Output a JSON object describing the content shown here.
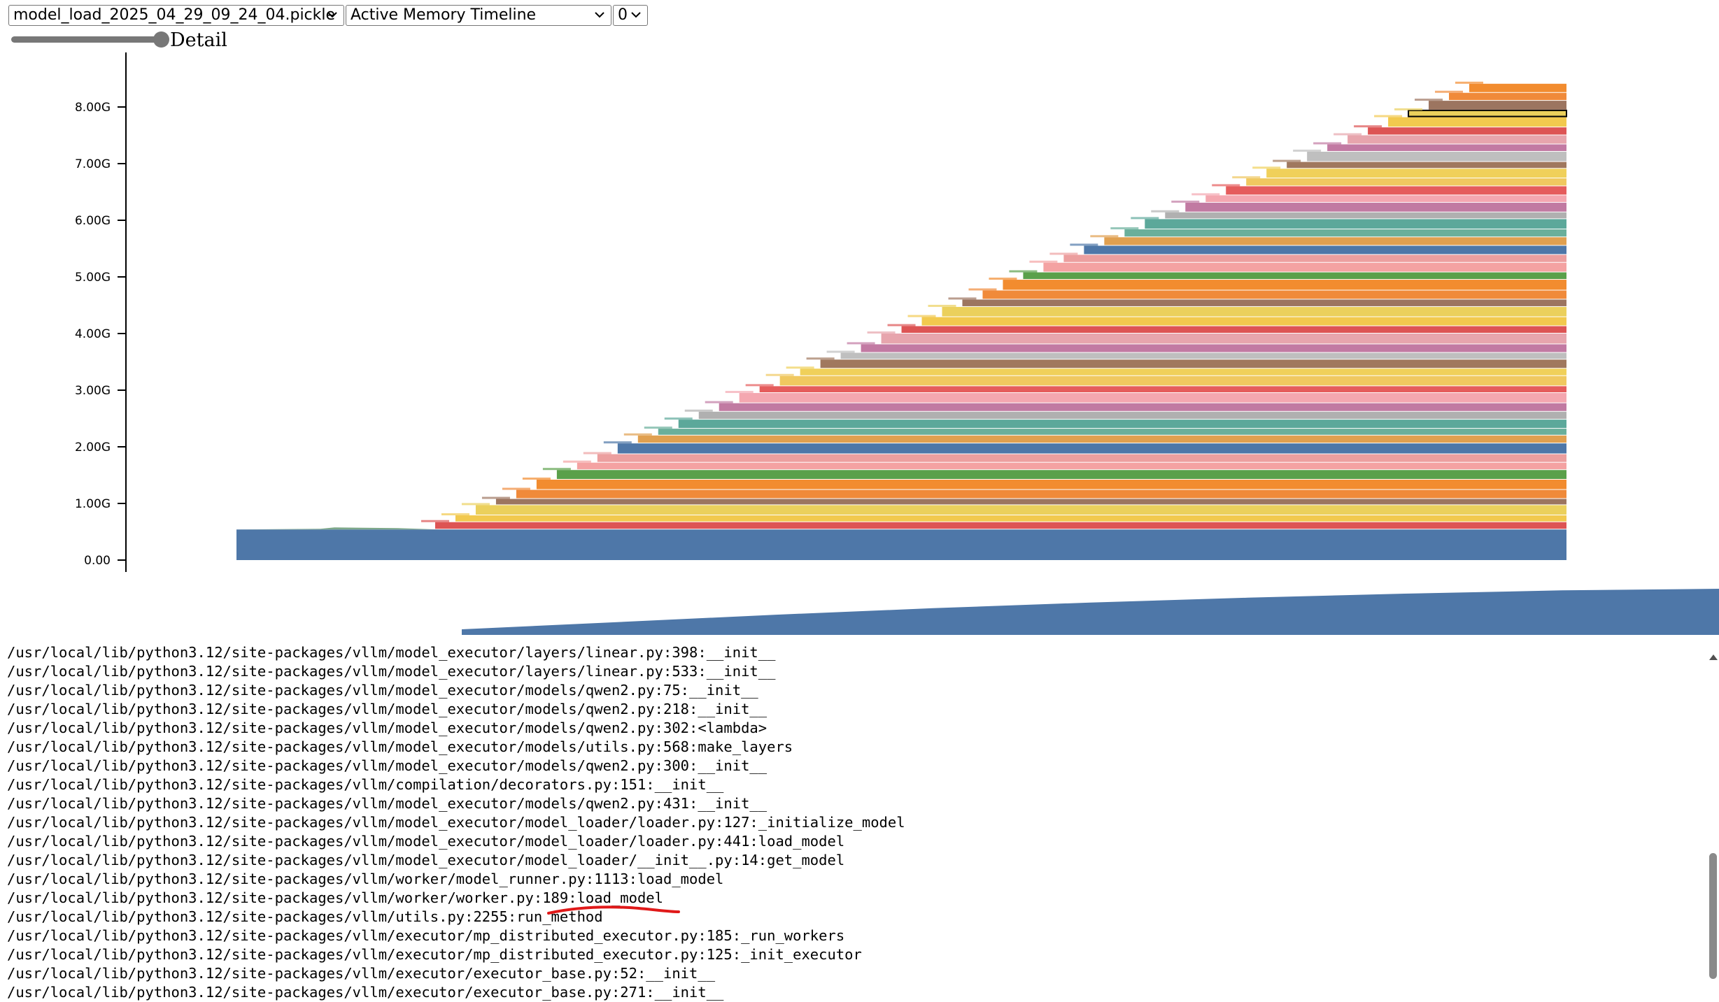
{
  "toolbar": {
    "snapshot_select": {
      "value": "model_load_2025_04_29_09_24_04.pickle"
    },
    "view_select": {
      "value": "Active Memory Timeline"
    },
    "device_select": {
      "value": "0"
    },
    "detail_slider": {
      "label": "Detail",
      "level": 1.0
    }
  },
  "chart_data": {
    "type": "area",
    "title": "",
    "xlabel": "",
    "ylabel": "",
    "y_tick_labels": [
      "0.00",
      "1.00G",
      "2.00G",
      "3.00G",
      "4.00G",
      "5.00G",
      "6.00G",
      "7.00G",
      "8.00G"
    ],
    "ylim_gb": [
      0,
      8.8
    ],
    "base_allocation_gb": 0.54,
    "layer_allocations_gb": [
      0.13,
      0.12,
      0.18,
      0.11,
      0.16,
      0.18,
      0.17,
      0.13,
      0.15,
      0.19,
      0.14,
      0.12,
      0.16,
      0.14,
      0.15,
      0.18,
      0.12,
      0.18,
      0.13,
      0.16,
      0.12,
      0.15,
      0.19,
      0.13,
      0.16,
      0.18,
      0.13,
      0.16,
      0.19,
      0.13,
      0.17,
      0.14,
      0.16,
      0.15,
      0.14,
      0.18,
      0.12,
      0.17,
      0.13,
      0.16,
      0.14,
      0.17,
      0.12,
      0.18,
      0.13,
      0.16,
      0.14,
      0.18,
      0.12,
      0.17,
      0.14,
      0.16
    ],
    "peak_gb": 7.6,
    "series_colors": [
      "#dd5454",
      "#f2c94e",
      "#ebd05c",
      "#9c7560",
      "#f08a3a",
      "#f28c2f",
      "#5aa04a",
      "#f4a2a2",
      "#ec9f9f",
      "#4e77a8",
      "#e0a050",
      "#6aaf9b",
      "#5ca89a",
      "#b0b0b0",
      "#c17aa2",
      "#f4a7b0",
      "#e55c5c",
      "#f0c860",
      "#f0d05a",
      "#a0785e",
      "#bfbfbf",
      "#c27aa3",
      "#e7a5ad"
    ],
    "highlighted_block_index": 48,
    "minimap_heights_norm": [
      0.0,
      0.18,
      0.36,
      0.52,
      0.66,
      0.78,
      0.88,
      0.96,
      1.0
    ]
  },
  "stack_trace": [
    "/usr/local/lib/python3.12/site-packages/vllm/model_executor/layers/linear.py:398:__init__",
    "/usr/local/lib/python3.12/site-packages/vllm/model_executor/layers/linear.py:533:__init__",
    "/usr/local/lib/python3.12/site-packages/vllm/model_executor/models/qwen2.py:75:__init__",
    "/usr/local/lib/python3.12/site-packages/vllm/model_executor/models/qwen2.py:218:__init__",
    "/usr/local/lib/python3.12/site-packages/vllm/model_executor/models/qwen2.py:302:<lambda>",
    "/usr/local/lib/python3.12/site-packages/vllm/model_executor/models/utils.py:568:make_layers",
    "/usr/local/lib/python3.12/site-packages/vllm/model_executor/models/qwen2.py:300:__init__",
    "/usr/local/lib/python3.12/site-packages/vllm/compilation/decorators.py:151:__init__",
    "/usr/local/lib/python3.12/site-packages/vllm/model_executor/models/qwen2.py:431:__init__",
    "/usr/local/lib/python3.12/site-packages/vllm/model_executor/model_loader/loader.py:127:_initialize_model",
    "/usr/local/lib/python3.12/site-packages/vllm/model_executor/model_loader/loader.py:441:load_model",
    "/usr/local/lib/python3.12/site-packages/vllm/model_executor/model_loader/__init__.py:14:get_model",
    "/usr/local/lib/python3.12/site-packages/vllm/worker/model_runner.py:1113:load_model",
    "/usr/local/lib/python3.12/site-packages/vllm/worker/worker.py:189:load_model",
    "/usr/local/lib/python3.12/site-packages/vllm/utils.py:2255:run_method",
    "/usr/local/lib/python3.12/site-packages/vllm/executor/mp_distributed_executor.py:185:_run_workers",
    "/usr/local/lib/python3.12/site-packages/vllm/executor/mp_distributed_executor.py:125:_init_executor",
    "/usr/local/lib/python3.12/site-packages/vllm/executor/executor_base.py:52:__init__",
    "/usr/local/lib/python3.12/site-packages/vllm/executor/executor_base.py:271:__init__"
  ],
  "annotation": {
    "underlined_frame_index": 13,
    "color": "#e01919"
  }
}
